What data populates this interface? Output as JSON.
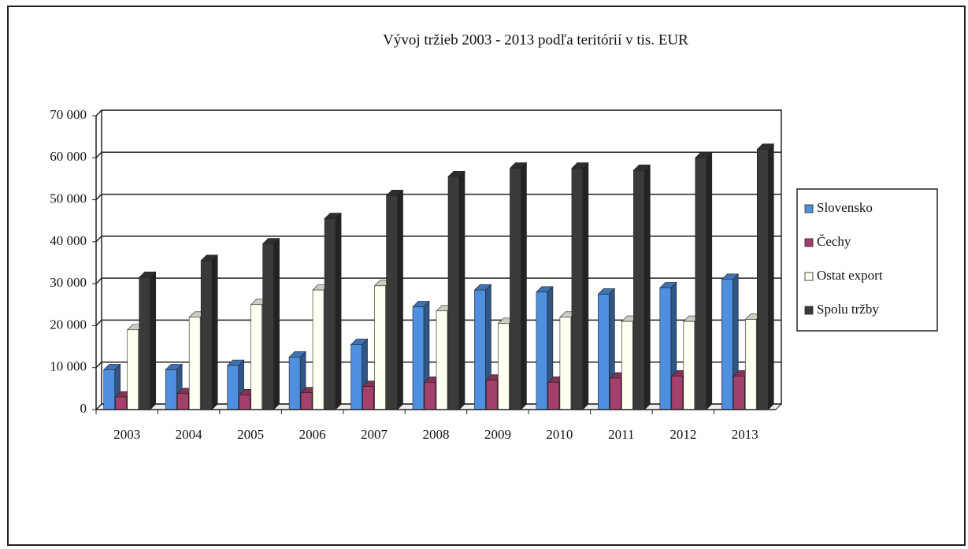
{
  "chart_data": {
    "type": "bar",
    "title": "Vývoj tržieb 2003 - 2013 podľa teritórií v tis. EUR",
    "categories": [
      "2003",
      "2004",
      "2005",
      "2006",
      "2007",
      "2008",
      "2009",
      "2010",
      "2011",
      "2012",
      "2013"
    ],
    "series": [
      {
        "name": "Slovensko",
        "color": "#4f8fe0",
        "values": [
          9500,
          9500,
          10500,
          12500,
          15500,
          24500,
          28500,
          28000,
          27500,
          29000,
          31000
        ]
      },
      {
        "name": "Čechy",
        "color": "#a3406c",
        "values": [
          3000,
          3800,
          3500,
          4000,
          5500,
          6500,
          7000,
          6500,
          7500,
          8000,
          8000
        ]
      },
      {
        "name": "Ostat export",
        "color": "#fffff2",
        "values": [
          19000,
          22000,
          25000,
          28500,
          29500,
          23500,
          20500,
          22000,
          21000,
          21000,
          21500
        ]
      },
      {
        "name": "Spolu tržby",
        "color": "#3a3a3a",
        "values": [
          31500,
          35500,
          39500,
          45500,
          51000,
          55500,
          57500,
          57500,
          57000,
          60000,
          62000
        ]
      }
    ],
    "ylim": [
      0,
      70000
    ],
    "yticks": [
      0,
      {
        "value": 10000,
        "label": "10 000"
      },
      {
        "value": 20000,
        "label": "20 000"
      },
      {
        "value": 30000,
        "label": "30 000"
      },
      {
        "value": 40000,
        "label": "40 000"
      },
      {
        "value": 50000,
        "label": "50 000"
      },
      {
        "value": 60000,
        "label": "60 000"
      },
      {
        "value": 70000,
        "label": "70 000"
      }
    ],
    "grid": true,
    "legend": "right"
  }
}
